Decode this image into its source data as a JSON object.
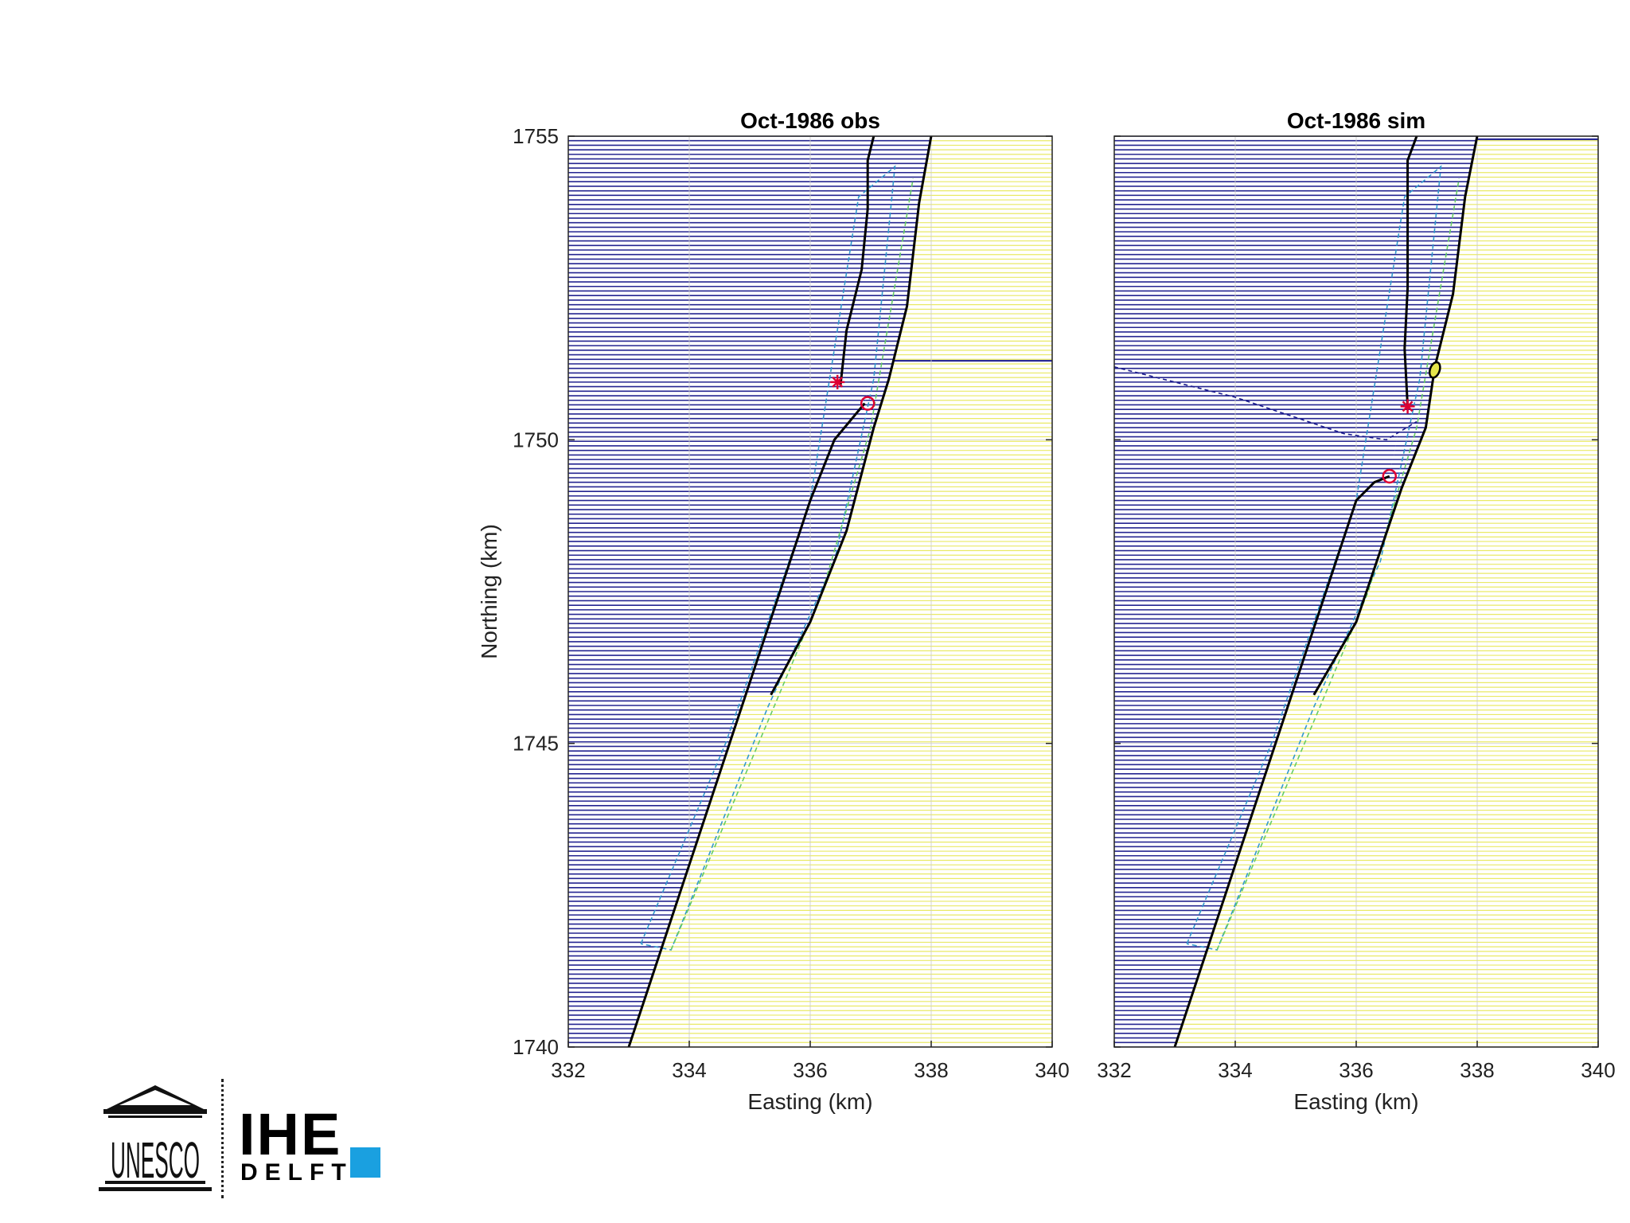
{
  "chart_data": [
    {
      "type": "map",
      "title": "Oct-1986 obs",
      "xlabel": "Easting (km)",
      "ylabel": "Northing (km)",
      "xlim": [
        332,
        340
      ],
      "ylim": [
        1740,
        1755
      ],
      "xticks": [
        332,
        334,
        336,
        338,
        340
      ],
      "yticks": [
        1740,
        1745,
        1750,
        1755
      ],
      "grid": true,
      "colors": {
        "water": "#1a1a8c",
        "land": "#e6e64a",
        "coast": "#000000",
        "lagoon_outline": "#3399cc",
        "land_outline": "#66cc66",
        "markers": "#dd0033"
      },
      "coastline": [
        [
          333.0,
          1740
        ],
        [
          333.5,
          1741.5
        ],
        [
          334.0,
          1743
        ],
        [
          334.5,
          1744.5
        ],
        [
          335.0,
          1746
        ],
        [
          335.5,
          1747.5
        ],
        [
          336.0,
          1749
        ],
        [
          336.4,
          1750
        ],
        [
          336.9,
          1750.6
        ]
      ],
      "spit_north": [
        [
          336.5,
          1750.9
        ],
        [
          336.6,
          1751.8
        ],
        [
          336.85,
          1752.8
        ],
        [
          336.95,
          1753.8
        ],
        [
          336.95,
          1754.6
        ],
        [
          337.05,
          1755
        ]
      ],
      "barrier_east": [
        [
          338.0,
          1755
        ],
        [
          337.8,
          1753.9
        ],
        [
          337.6,
          1752.2
        ],
        [
          337.3,
          1751
        ],
        [
          337.05,
          1750.2
        ],
        [
          336.6,
          1748.5
        ],
        [
          336.0,
          1747
        ],
        [
          335.35,
          1745.8
        ]
      ],
      "offshore_line_northing": 1751.3,
      "lagoon_outline_blue": [
        [
          333.2,
          1741.7
        ],
        [
          334.6,
          1745
        ],
        [
          336.0,
          1749
        ],
        [
          336.8,
          1754
        ],
        [
          337.4,
          1754.5
        ],
        [
          337.05,
          1751
        ],
        [
          336.4,
          1748
        ],
        [
          335.3,
          1745.6
        ],
        [
          333.7,
          1741.6
        ],
        [
          333.2,
          1741.7
        ]
      ],
      "land_outline_green": [
        [
          333.7,
          1741.6
        ],
        [
          335.4,
          1745.6
        ],
        [
          336.2,
          1747.5
        ],
        [
          337.0,
          1750.2
        ],
        [
          337.7,
          1754.3
        ]
      ],
      "markers": [
        {
          "symbol": "asterisk",
          "easting": 336.45,
          "northing": 1750.95
        },
        {
          "symbol": "circle",
          "easting": 336.95,
          "northing": 1750.6
        }
      ]
    },
    {
      "type": "map",
      "title": "Oct-1986 sim",
      "xlabel": "Easting (km)",
      "ylabel": "",
      "xlim": [
        332,
        340
      ],
      "ylim": [
        1740,
        1755
      ],
      "xticks": [
        332,
        334,
        336,
        338,
        340
      ],
      "yticks": [
        1740,
        1745,
        1750,
        1755
      ],
      "grid": true,
      "colors": {
        "water": "#1a1a8c",
        "land": "#e6e64a",
        "coast": "#000000",
        "lagoon_outline": "#3399cc",
        "land_outline": "#66cc66",
        "markers": "#dd0033"
      },
      "coastline": [
        [
          333.0,
          1740
        ],
        [
          333.5,
          1741.5
        ],
        [
          334.0,
          1743
        ],
        [
          334.5,
          1744.5
        ],
        [
          335.0,
          1746
        ],
        [
          335.5,
          1747.5
        ],
        [
          336.0,
          1749
        ],
        [
          336.3,
          1749.3
        ],
        [
          336.55,
          1749.4
        ]
      ],
      "spit_north": [
        [
          336.85,
          1750.55
        ],
        [
          336.8,
          1751.5
        ],
        [
          336.85,
          1752.5
        ],
        [
          336.85,
          1753.5
        ],
        [
          336.85,
          1754.6
        ],
        [
          337.0,
          1755
        ]
      ],
      "barrier_east": [
        [
          338.0,
          1755
        ],
        [
          337.8,
          1754
        ],
        [
          337.6,
          1752.4
        ],
        [
          337.3,
          1751.2
        ],
        [
          337.15,
          1750.2
        ],
        [
          336.75,
          1749.2
        ],
        [
          336.0,
          1747
        ],
        [
          335.3,
          1745.8
        ]
      ],
      "offshore_line_northing": 1754.95,
      "dashed_channel": [
        [
          332.0,
          1751.2
        ],
        [
          334.0,
          1750.7
        ],
        [
          335.8,
          1750.1
        ],
        [
          336.5,
          1750.0
        ],
        [
          337.0,
          1750.3
        ]
      ],
      "lagoon_outline_blue": [
        [
          333.2,
          1741.7
        ],
        [
          334.6,
          1745
        ],
        [
          336.0,
          1749
        ],
        [
          336.8,
          1754
        ],
        [
          337.4,
          1754.5
        ],
        [
          337.05,
          1751
        ],
        [
          336.4,
          1748
        ],
        [
          335.3,
          1745.6
        ],
        [
          333.7,
          1741.6
        ],
        [
          333.2,
          1741.7
        ]
      ],
      "land_outline_green": [
        [
          333.7,
          1741.6
        ],
        [
          335.4,
          1745.6
        ],
        [
          336.2,
          1747.5
        ],
        [
          337.0,
          1750.2
        ],
        [
          337.7,
          1754.3
        ]
      ],
      "island": {
        "easting": 337.3,
        "northing": 1751.15
      },
      "markers": [
        {
          "symbol": "asterisk",
          "easting": 336.85,
          "northing": 1750.55
        },
        {
          "symbol": "circle",
          "easting": 336.55,
          "northing": 1749.4
        }
      ]
    }
  ],
  "logo": {
    "unesco_text": "UNESCO",
    "ihe_text": "IHE",
    "delft_text": "DELFT",
    "accent_color": "#1aa0e0"
  }
}
